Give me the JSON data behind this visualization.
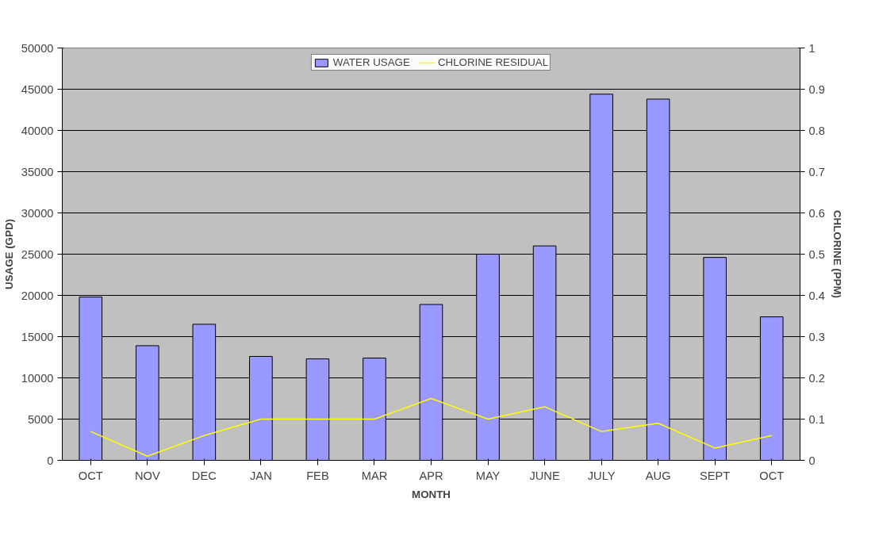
{
  "chart_data": {
    "type": "bar",
    "xlabel": "MONTH",
    "ylabel": "USAGE (GPD)",
    "y2label": "CHLORINE (PPM)",
    "categories": [
      "OCT",
      "NOV",
      "DEC",
      "JAN",
      "FEB",
      "MAR",
      "APR",
      "MAY",
      "JUNE",
      "JULY",
      "AUG",
      "SEPT",
      "OCT"
    ],
    "series": [
      {
        "name": "WATER USAGE",
        "color": "#9999ff",
        "values": [
          19800,
          13900,
          16500,
          12600,
          12300,
          12400,
          18900,
          25000,
          26000,
          44400,
          43800,
          24600,
          17400
        ]
      },
      {
        "name": "CHLORINE RESIDUAL",
        "type": "line",
        "axis": "y2",
        "color": "#ffff00",
        "values": [
          0.07,
          0.01,
          0.06,
          0.1,
          0.1,
          0.1,
          0.15,
          0.1,
          0.13,
          0.07,
          0.09,
          0.03,
          0.06
        ]
      }
    ],
    "ylim": [
      0,
      50000
    ],
    "yticks": [
      0,
      5000,
      10000,
      15000,
      20000,
      25000,
      30000,
      35000,
      40000,
      45000,
      50000
    ],
    "y2lim": [
      0,
      1
    ],
    "y2ticks": [
      0,
      0.1,
      0.2,
      0.3,
      0.4,
      0.5,
      0.6,
      0.7,
      0.8,
      0.9,
      1
    ],
    "grid": "y",
    "legend": "top"
  }
}
